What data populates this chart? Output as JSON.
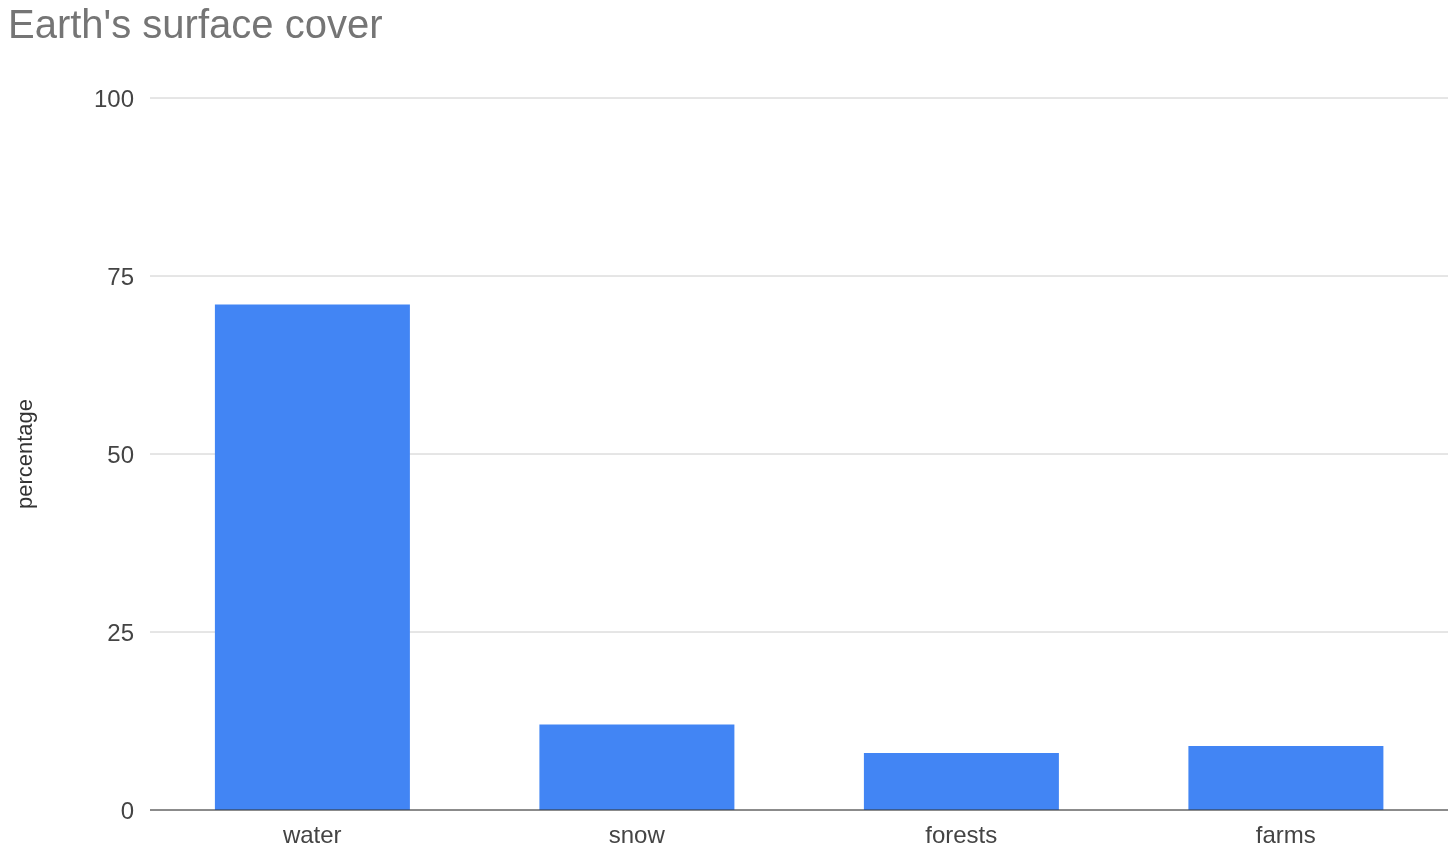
{
  "chart_data": {
    "type": "bar",
    "title": "Earth's surface cover",
    "ylabel": "percentage",
    "categories": [
      "water",
      "snow",
      "forests",
      "farms"
    ],
    "values": [
      71,
      12,
      8,
      9
    ],
    "color": "#4285f4",
    "ylim": [
      0,
      100
    ],
    "yticks": [
      0,
      25,
      50,
      75,
      100
    ],
    "grid": "y"
  }
}
